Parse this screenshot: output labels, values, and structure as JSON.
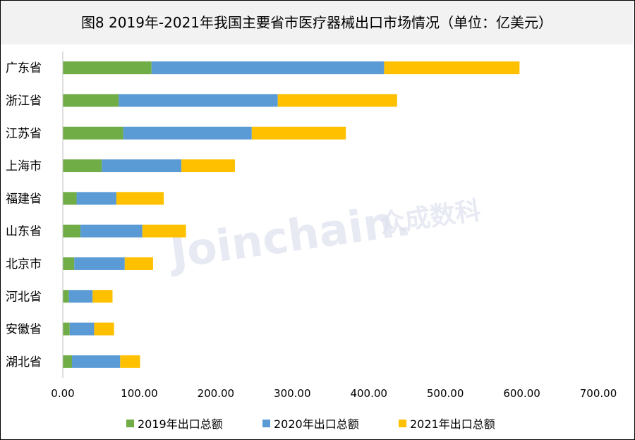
{
  "chart_data": {
    "type": "bar",
    "orientation": "horizontal",
    "stacked": true,
    "title": "图8  2019年-2021年我国主要省市医疗器械出口市场情况（单位：亿美元）",
    "categories": [
      "广东省",
      "浙江省",
      "江苏省",
      "上海市",
      "福建省",
      "山东省",
      "北京市",
      "河北省",
      "安徽省",
      "湖北省"
    ],
    "series": [
      {
        "name": "2019年出口总额",
        "color": "#70ad47",
        "values": [
          116,
          73,
          79,
          51,
          18,
          23,
          15,
          8,
          9,
          12
        ]
      },
      {
        "name": "2020年出口总额",
        "color": "#5b9bd5",
        "values": [
          304,
          208,
          168,
          104,
          52,
          81,
          66,
          31,
          32,
          63
        ]
      },
      {
        "name": "2021年出口总额",
        "color": "#ffc000",
        "values": [
          177,
          156,
          123,
          70,
          62,
          57,
          37,
          26,
          26,
          26
        ]
      }
    ],
    "xlim": [
      0,
      700
    ],
    "xticks": [
      "0.00",
      "100.00",
      "200.00",
      "300.00",
      "400.00",
      "500.00",
      "600.00",
      "700.00"
    ],
    "xlabel": "",
    "ylabel": "",
    "grid": false,
    "legend_position": "bottom"
  },
  "watermark": {
    "text": "Joinchain.",
    "text_cn": "众成数科"
  }
}
